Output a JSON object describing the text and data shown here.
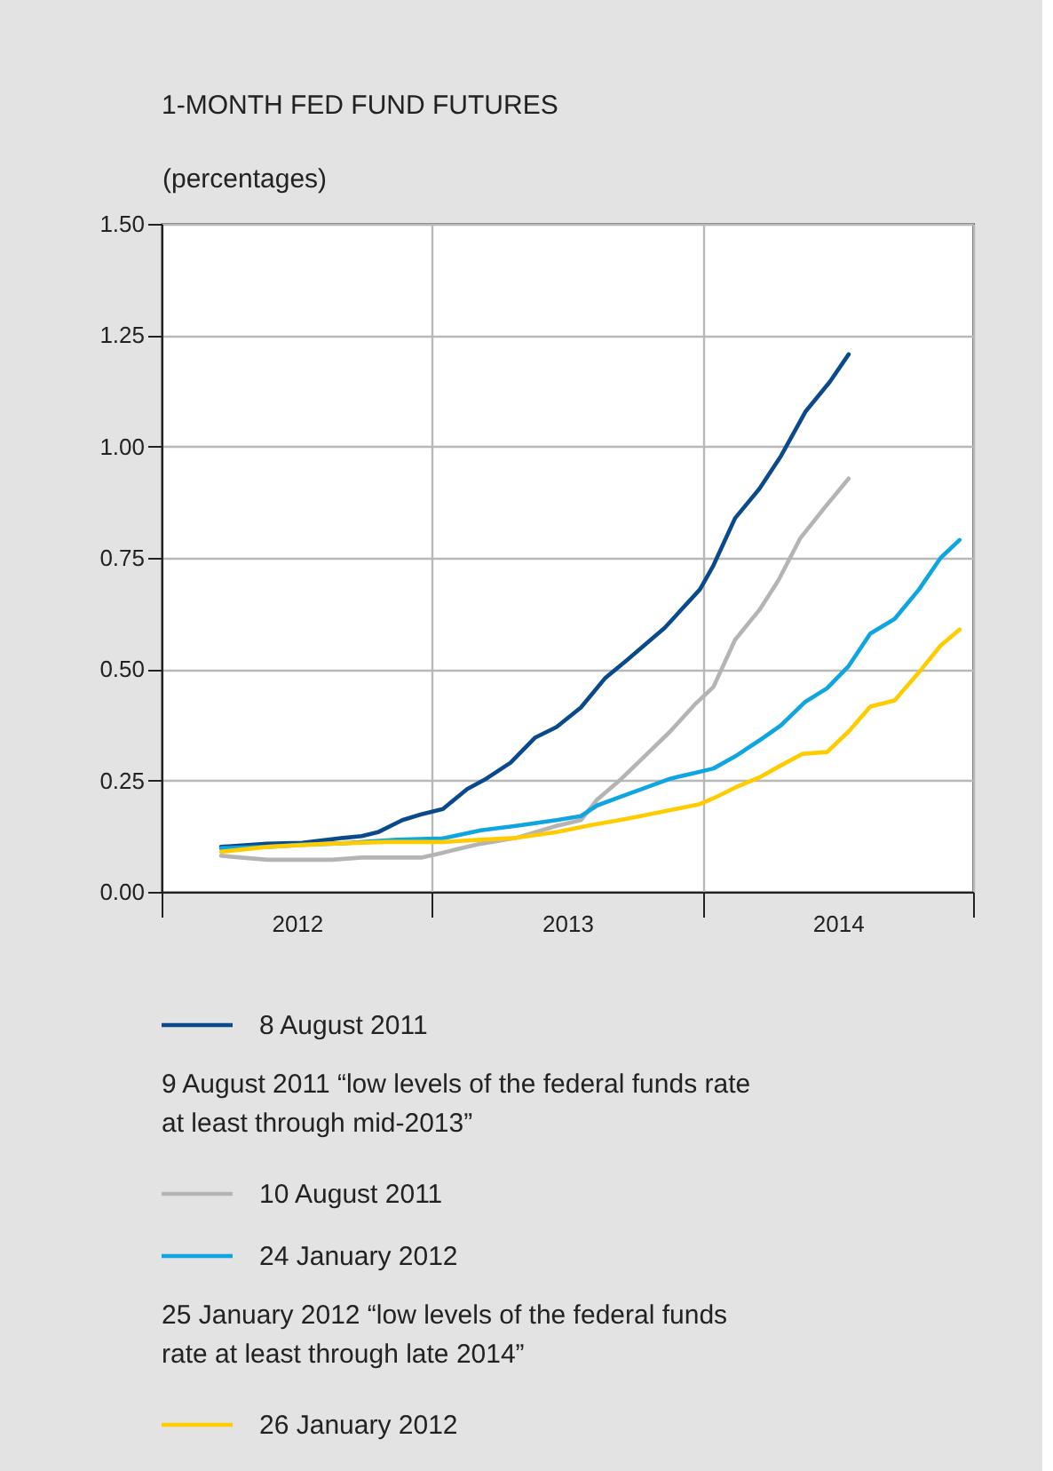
{
  "chart_data": {
    "type": "line",
    "title": "1-MONTH FED FUND FUTURES",
    "ylabel": "(percentages)",
    "xlim": [
      2012,
      2015
    ],
    "xticks": [
      {
        "value": 2012,
        "label": null
      },
      {
        "value": 2012.5,
        "label": "2012"
      },
      {
        "value": 2013,
        "label": null
      },
      {
        "value": 2013.5,
        "label": "2013"
      },
      {
        "value": 2014,
        "label": null
      },
      {
        "value": 2014.5,
        "label": "2014"
      },
      {
        "value": 2015,
        "label": null
      }
    ],
    "ylim": [
      0,
      1.5
    ],
    "yticks": [
      {
        "value": 0,
        "label": "0.00"
      },
      {
        "value": 0.25,
        "label": "0.25"
      },
      {
        "value": 0.5,
        "label": "0.50"
      },
      {
        "value": 0.75,
        "label": "0.75"
      },
      {
        "value": 1,
        "label": "1.00"
      },
      {
        "value": 1.25,
        "label": "1.25"
      },
      {
        "value": 1.5,
        "label": "1.50"
      }
    ],
    "grid": true,
    "legend": "bottom",
    "line_style": "solid",
    "marker": "none",
    "annotations": [
      "9 August 2011 “low levels of the federal funds rate at least through mid-2013”",
      "25 January 2012 “low levels of the federal funds rate at least through late 2014”"
    ],
    "series": [
      {
        "name": "8 August 2011",
        "color": "#0a4a8c",
        "x": [
          2012.22,
          2012.39,
          2012.52,
          2012.67,
          2012.74,
          2012.8,
          2012.89,
          2012.96,
          2013.04,
          2013.13,
          2013.2,
          2013.29,
          2013.38,
          2013.46,
          2013.55,
          2013.64,
          2013.72,
          2013.86,
          2013.99,
          2014.04,
          2014.12,
          2014.21,
          2014.29,
          2014.38,
          2014.47,
          2014.54
        ],
        "values": [
          0.101,
          0.108,
          0.11,
          0.121,
          0.125,
          0.134,
          0.161,
          0.174,
          0.186,
          0.231,
          0.254,
          0.29,
          0.346,
          0.37,
          0.414,
          0.48,
          0.52,
          0.593,
          0.679,
          0.733,
          0.839,
          0.905,
          0.979,
          1.078,
          1.145,
          1.207
        ]
      },
      {
        "name": "10 August 2011",
        "color": "#b4b4b4",
        "x": [
          2012.22,
          2012.39,
          2012.63,
          2012.74,
          2012.96,
          2013.04,
          2013.18,
          2013.31,
          2013.46,
          2013.55,
          2013.61,
          2013.7,
          2013.79,
          2013.88,
          2013.97,
          2014.04,
          2014.12,
          2014.21,
          2014.28,
          2014.36,
          2014.45,
          2014.54
        ],
        "values": [
          0.081,
          0.072,
          0.072,
          0.077,
          0.077,
          0.088,
          0.108,
          0.121,
          0.148,
          0.161,
          0.207,
          0.254,
          0.307,
          0.36,
          0.42,
          0.46,
          0.566,
          0.633,
          0.699,
          0.793,
          0.862,
          0.928
        ]
      },
      {
        "name": "24 January 2012",
        "color": "#0ea5e0",
        "x": [
          2012.22,
          2012.39,
          2012.52,
          2012.67,
          2012.87,
          2013.04,
          2013.18,
          2013.31,
          2013.46,
          2013.55,
          2013.61,
          2013.7,
          2013.79,
          2013.88,
          2013.97,
          2014.04,
          2014.12,
          2014.21,
          2014.29,
          2014.38,
          2014.46,
          2014.54,
          2014.62,
          2014.71,
          2014.8,
          2014.88,
          2014.95
        ],
        "values": [
          0.098,
          0.101,
          0.106,
          0.109,
          0.117,
          0.12,
          0.138,
          0.148,
          0.161,
          0.17,
          0.194,
          0.214,
          0.234,
          0.254,
          0.267,
          0.277,
          0.304,
          0.34,
          0.374,
          0.427,
          0.457,
          0.507,
          0.58,
          0.613,
          0.679,
          0.75,
          0.79
        ]
      },
      {
        "name": "26 January 2012",
        "color": "#ffcc00",
        "x": [
          2012.22,
          2012.39,
          2012.61,
          2012.83,
          2013.04,
          2013.18,
          2013.31,
          2013.46,
          2013.59,
          2013.72,
          2013.86,
          2013.99,
          2014.04,
          2014.12,
          2014.21,
          2014.29,
          2014.37,
          2014.46,
          2014.54,
          2014.62,
          2014.71,
          2014.8,
          2014.88,
          2014.95
        ],
        "values": [
          0.09,
          0.101,
          0.108,
          0.112,
          0.112,
          0.117,
          0.121,
          0.134,
          0.15,
          0.164,
          0.181,
          0.197,
          0.21,
          0.234,
          0.257,
          0.284,
          0.31,
          0.314,
          0.36,
          0.416,
          0.43,
          0.493,
          0.553,
          0.589
        ]
      }
    ]
  }
}
